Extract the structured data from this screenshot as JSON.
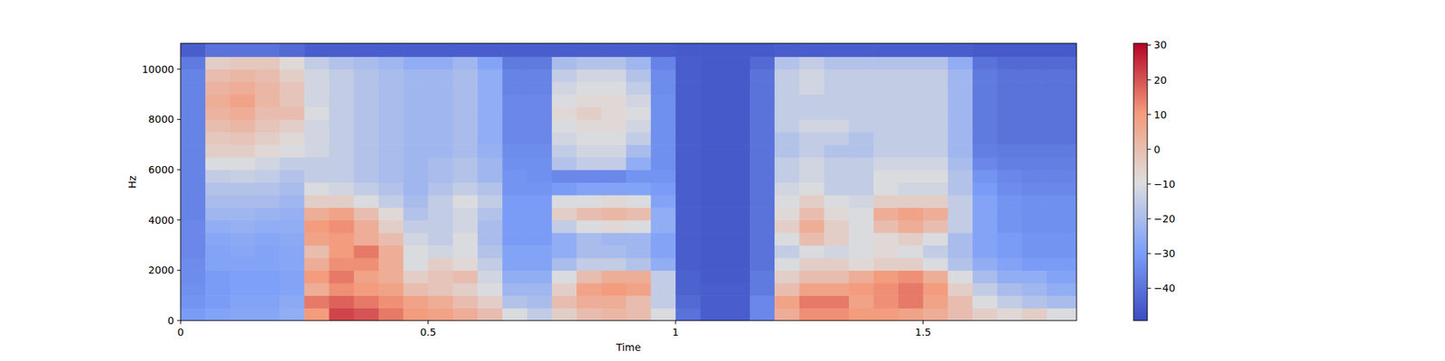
{
  "chart_data": {
    "type": "heatmap",
    "x_label": "Time",
    "y_label": "Hz",
    "xlim": [
      0,
      1.81
    ],
    "xticks": [
      0,
      0.5,
      1,
      1.5
    ],
    "ylim": [
      0,
      11025
    ],
    "yticks": [
      0,
      2000,
      4000,
      6000,
      8000,
      10000
    ],
    "grid": false,
    "x_edges": [
      0,
      0.05,
      0.1,
      0.15,
      0.2,
      0.25,
      0.3,
      0.35,
      0.4,
      0.45,
      0.5,
      0.55,
      0.6,
      0.65,
      0.7,
      0.75,
      0.8,
      0.85,
      0.9,
      0.95,
      1.0,
      1.05,
      1.1,
      1.15,
      1.2,
      1.25,
      1.3,
      1.35,
      1.4,
      1.45,
      1.5,
      1.55,
      1.6,
      1.65,
      1.7,
      1.75,
      1.81
    ],
    "y_edges": [
      0,
      500,
      1000,
      1500,
      2000,
      2500,
      3000,
      3500,
      4000,
      4500,
      5000,
      5500,
      6000,
      6500,
      7000,
      7500,
      8000,
      8500,
      9000,
      9500,
      10000,
      10500,
      11025
    ],
    "cells": [
      [
        -30,
        -28,
        -27,
        -27,
        -25,
        10,
        22,
        20,
        15,
        10,
        8,
        5,
        0,
        -10,
        -15,
        -5,
        0,
        2,
        0,
        -10,
        -40,
        -45,
        -45,
        -35,
        5,
        12,
        12,
        10,
        10,
        8,
        5,
        0,
        -5,
        -8,
        -5,
        -10
      ],
      [
        -32,
        -30,
        -28,
        -28,
        -26,
        15,
        18,
        15,
        12,
        8,
        5,
        0,
        -5,
        -18,
        -20,
        0,
        5,
        5,
        0,
        -15,
        -42,
        -45,
        -45,
        -35,
        8,
        15,
        15,
        8,
        12,
        15,
        8,
        0,
        -10,
        -15,
        -18,
        -20
      ],
      [
        -33,
        -30,
        -29,
        -29,
        -28,
        5,
        12,
        10,
        8,
        0,
        -2,
        -5,
        -10,
        -22,
        -22,
        -5,
        8,
        10,
        8,
        -15,
        -44,
        -45,
        -45,
        -38,
        0,
        8,
        8,
        10,
        12,
        15,
        10,
        -5,
        -15,
        -20,
        -22,
        -25
      ],
      [
        -34,
        -30,
        -29,
        -29,
        -28,
        10,
        15,
        8,
        5,
        -5,
        -2,
        0,
        -12,
        -25,
        -25,
        -10,
        0,
        5,
        5,
        -15,
        -44,
        -46,
        -46,
        -38,
        -5,
        0,
        0,
        5,
        10,
        12,
        5,
        -10,
        -20,
        -25,
        -25,
        -28
      ],
      [
        -34,
        -28,
        -28,
        -28,
        -27,
        5,
        12,
        12,
        5,
        -10,
        -5,
        -8,
        -15,
        -28,
        -28,
        -20,
        -15,
        -15,
        -18,
        -25,
        -45,
        -46,
        -46,
        -40,
        -10,
        -5,
        -5,
        -8,
        -5,
        -5,
        -10,
        -18,
        -25,
        -28,
        -30,
        -30
      ],
      [
        -35,
        -28,
        -27,
        -28,
        -27,
        0,
        10,
        15,
        5,
        -10,
        -12,
        -10,
        -18,
        -28,
        -28,
        -25,
        -20,
        -20,
        -22,
        -28,
        -45,
        -46,
        -46,
        -40,
        -15,
        -10,
        -12,
        -10,
        -8,
        -10,
        -15,
        -20,
        -28,
        -30,
        -32,
        -32
      ],
      [
        -35,
        -27,
        -26,
        -27,
        -26,
        8,
        10,
        5,
        0,
        -12,
        -15,
        -10,
        -20,
        -30,
        -30,
        -25,
        -20,
        -22,
        -22,
        -28,
        -45,
        -46,
        -46,
        -40,
        -10,
        0,
        -5,
        -10,
        -8,
        -5,
        -10,
        -20,
        -28,
        -30,
        -32,
        -32
      ],
      [
        -35,
        -25,
        -24,
        -25,
        -25,
        10,
        12,
        5,
        -5,
        -15,
        -15,
        -12,
        -20,
        -30,
        -30,
        -15,
        -10,
        -8,
        -10,
        -25,
        -45,
        -46,
        -46,
        -40,
        -5,
        5,
        -5,
        -10,
        0,
        5,
        0,
        -15,
        -28,
        -32,
        -33,
        -33
      ],
      [
        -36,
        -22,
        -22,
        -23,
        -24,
        5,
        8,
        0,
        -8,
        -18,
        -15,
        -12,
        -18,
        -30,
        -30,
        -5,
        0,
        2,
        0,
        -25,
        -45,
        -46,
        -46,
        -40,
        -8,
        0,
        -8,
        -10,
        5,
        8,
        5,
        -15,
        -28,
        -32,
        -33,
        -33
      ],
      [
        -36,
        -20,
        -20,
        -20,
        -22,
        -5,
        -5,
        -10,
        -15,
        -20,
        -15,
        -10,
        -15,
        -30,
        -30,
        -10,
        -10,
        -8,
        -10,
        -28,
        -45,
        -46,
        -46,
        -40,
        -10,
        -5,
        -10,
        -12,
        -5,
        -5,
        -5,
        -15,
        -28,
        -32,
        -33,
        -33
      ],
      [
        -36,
        -18,
        -18,
        -18,
        -20,
        -10,
        -12,
        -15,
        -18,
        -22,
        -18,
        -15,
        -18,
        -32,
        -32,
        -30,
        -28,
        -28,
        -28,
        -30,
        -45,
        -46,
        -46,
        -40,
        -12,
        -10,
        -15,
        -15,
        -10,
        -12,
        -12,
        -18,
        -30,
        -34,
        -35,
        -35
      ],
      [
        -36,
        -15,
        -14,
        -15,
        -18,
        -15,
        -15,
        -18,
        -20,
        -22,
        -20,
        -18,
        -22,
        -32,
        -33,
        -35,
        -35,
        -35,
        -32,
        -32,
        -45,
        -46,
        -46,
        -40,
        -15,
        -12,
        -15,
        -15,
        -10,
        -10,
        -10,
        -18,
        -32,
        -35,
        -36,
        -36
      ],
      [
        -36,
        -10,
        -10,
        -12,
        -15,
        -15,
        -15,
        -18,
        -20,
        -22,
        -20,
        -18,
        -22,
        -33,
        -33,
        -18,
        -15,
        -15,
        -25,
        -33,
        -45,
        -46,
        -46,
        -40,
        -15,
        -12,
        -15,
        -15,
        -12,
        -12,
        -12,
        -20,
        -35,
        -37,
        -37,
        -37
      ],
      [
        -36,
        -5,
        -5,
        -8,
        -10,
        -12,
        -15,
        -18,
        -20,
        -22,
        -22,
        -20,
        -24,
        -34,
        -34,
        -15,
        -12,
        -12,
        -20,
        -33,
        -45,
        -46,
        -46,
        -40,
        -18,
        -15,
        -18,
        -18,
        -15,
        -15,
        -15,
        -22,
        -37,
        -38,
        -38,
        -38
      ],
      [
        -36,
        -3,
        -2,
        -5,
        -8,
        -12,
        -15,
        -18,
        -20,
        -22,
        -22,
        -20,
        -25,
        -35,
        -35,
        -12,
        -10,
        -10,
        -15,
        -33,
        -45,
        -46,
        -46,
        -40,
        -18,
        -15,
        -15,
        -18,
        -15,
        -15,
        -15,
        -22,
        -38,
        -40,
        -40,
        -40
      ],
      [
        -36,
        0,
        2,
        -2,
        -5,
        -12,
        -15,
        -18,
        -20,
        -22,
        -22,
        -20,
        -25,
        -35,
        -35,
        -10,
        -8,
        -8,
        -12,
        -33,
        -45,
        -46,
        -46,
        -40,
        -15,
        -12,
        -12,
        -15,
        -15,
        -15,
        -15,
        -22,
        -38,
        -40,
        -40,
        -40
      ],
      [
        -36,
        3,
        5,
        0,
        0,
        -10,
        -15,
        -18,
        -20,
        -22,
        -22,
        -20,
        -25,
        -35,
        -35,
        -8,
        -5,
        -8,
        -10,
        -33,
        -45,
        -46,
        -46,
        -40,
        -15,
        -15,
        -15,
        -15,
        -15,
        -15,
        -15,
        -22,
        -38,
        -40,
        -40,
        -40
      ],
      [
        -36,
        5,
        8,
        2,
        -2,
        -12,
        -15,
        -18,
        -20,
        -22,
        -22,
        -20,
        -25,
        -35,
        -35,
        -10,
        -8,
        -8,
        -12,
        -33,
        -45,
        -46,
        -46,
        -40,
        -15,
        -15,
        -15,
        -15,
        -15,
        -15,
        -15,
        -22,
        -38,
        -40,
        -40,
        -40
      ],
      [
        -36,
        3,
        5,
        2,
        -2,
        -12,
        -15,
        -18,
        -20,
        -22,
        -22,
        -20,
        -25,
        -36,
        -36,
        -12,
        -10,
        -10,
        -15,
        -34,
        -45,
        -46,
        -46,
        -40,
        -15,
        -12,
        -15,
        -15,
        -15,
        -15,
        -15,
        -22,
        -38,
        -40,
        -40,
        -40
      ],
      [
        -36,
        0,
        2,
        0,
        -5,
        -12,
        -15,
        -18,
        -20,
        -22,
        -22,
        -20,
        -25,
        -36,
        -36,
        -15,
        -12,
        -12,
        -18,
        -34,
        -45,
        -46,
        -46,
        -40,
        -15,
        -12,
        -15,
        -15,
        -15,
        -15,
        -15,
        -22,
        -38,
        -40,
        -40,
        -40
      ],
      [
        -38,
        -5,
        -3,
        -3,
        -8,
        -15,
        -18,
        -20,
        -22,
        -25,
        -25,
        -22,
        -28,
        -38,
        -38,
        -20,
        -18,
        -18,
        -22,
        -36,
        -45,
        -46,
        -46,
        -42,
        -18,
        -15,
        -18,
        -18,
        -18,
        -18,
        -18,
        -25,
        -40,
        -42,
        -42,
        -42
      ],
      [
        -45,
        -40,
        -40,
        -40,
        -42,
        -45,
        -45,
        -45,
        -45,
        -45,
        -45,
        -45,
        -45,
        -45,
        -45,
        -45,
        -45,
        -45,
        -45,
        -45,
        -46,
        -46,
        -46,
        -46,
        -45,
        -45,
        -45,
        -45,
        -45,
        -45,
        -45,
        -45,
        -46,
        -46,
        -46,
        -46
      ]
    ],
    "colorbar": {
      "range": [
        -49.3,
        30.5
      ],
      "ticks": [
        -40,
        -30,
        -20,
        -10,
        0,
        10,
        20,
        30
      ]
    }
  }
}
